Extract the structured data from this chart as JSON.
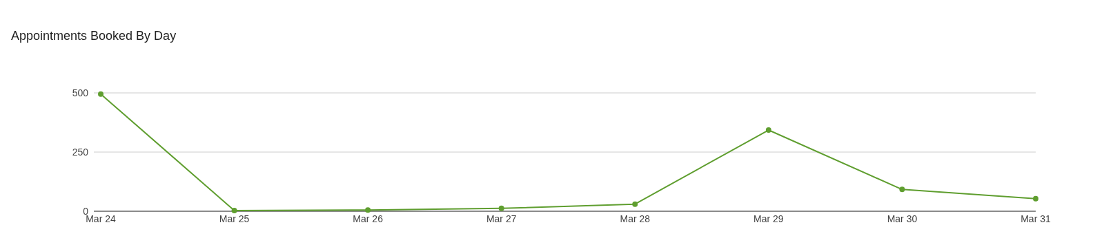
{
  "chart_data": {
    "type": "line",
    "title": "Appointments Booked By Day",
    "categories": [
      "Mar 24",
      "Mar 25",
      "Mar 26",
      "Mar 27",
      "Mar 28",
      "Mar 29",
      "Mar 30",
      "Mar 31"
    ],
    "series": [
      {
        "color": "#5f9e2f",
        "values": [
          495,
          3,
          5,
          12,
          30,
          343,
          92,
          53
        ]
      }
    ],
    "ylim": [
      0,
      500
    ],
    "yticks": [
      0,
      250,
      500
    ],
    "grid": "y",
    "marker": "circle"
  }
}
